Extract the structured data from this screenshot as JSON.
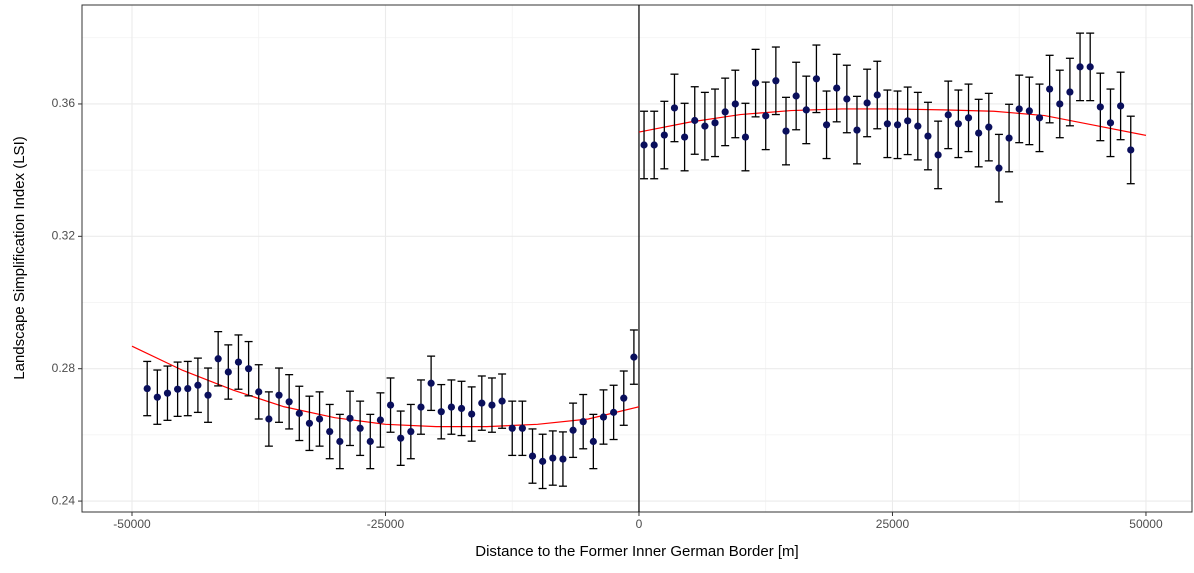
{
  "chart_data": {
    "type": "scatter",
    "x_label": "Distance to the Former Inner German Border [m]",
    "y_label": "Landscape Simplification Index (LSI)",
    "xlim": [
      -54930,
      54540
    ],
    "ylim": [
      0.2367,
      0.3899
    ],
    "xticks": [
      -50000,
      -25000,
      0,
      25000,
      50000
    ],
    "yticks": [
      0.24,
      0.28,
      0.32,
      0.36
    ],
    "x_minor_grid": [
      -37500,
      -12500,
      12500,
      37500
    ],
    "y_minor_grid": [
      0.26,
      0.3,
      0.34,
      0.38
    ],
    "grid": true,
    "vline": 0,
    "points": [
      {
        "color": "#0a0f5c",
        "error": 0.0082,
        "x": [
          -48500,
          -47500,
          -46500,
          -45500,
          -44500,
          -43500,
          -42500,
          -41500,
          -40500,
          -39500,
          -38500,
          -37500,
          -36500,
          -35500,
          -34500,
          -33500,
          -32500,
          -31500,
          -30500,
          -29500,
          -28500,
          -27500,
          -26500,
          -25500,
          -24500,
          -23500,
          -22500,
          -21500,
          -20500,
          -19500,
          -18500,
          -17500,
          -16500,
          -15500,
          -14500,
          -13500,
          -12500,
          -11500,
          -10500,
          -9500,
          -8500,
          -7500,
          -6500,
          -5500,
          -4500,
          -3500,
          -2500,
          -1500,
          -500
        ],
        "values": [
          0.274,
          0.2714,
          0.2726,
          0.2738,
          0.274,
          0.275,
          0.272,
          0.283,
          0.279,
          0.282,
          0.28,
          0.273,
          0.2648,
          0.272,
          0.27,
          0.2665,
          0.2635,
          0.2648,
          0.261,
          0.258,
          0.265,
          0.262,
          0.258,
          0.2645,
          0.269,
          0.259,
          0.261,
          0.2684,
          0.2756,
          0.267,
          0.2684,
          0.268,
          0.2663,
          0.2696,
          0.269,
          0.2702,
          0.262,
          0.262,
          0.2536,
          0.252,
          0.253,
          0.2527,
          0.2614,
          0.264,
          0.258,
          0.2654,
          0.2668,
          0.2711,
          0.2835
        ]
      },
      {
        "color": "#0a0f5c",
        "error": 0.0102,
        "x": [
          500,
          1500,
          2500,
          3500,
          4500,
          5500,
          6500,
          7500,
          8500,
          9500,
          10500,
          11500,
          12500,
          13500,
          14500,
          15500,
          16500,
          17500,
          18500,
          19500,
          20500,
          21500,
          22500,
          23500,
          24500,
          25500,
          26500,
          27500,
          28500,
          29500,
          30500,
          31500,
          32500,
          33500,
          34500,
          35500,
          36500,
          37500,
          38500,
          39500,
          40500,
          41500,
          42500,
          43500,
          44500,
          45500,
          46500,
          47500,
          48500
        ],
        "values": [
          0.3476,
          0.3476,
          0.3506,
          0.3588,
          0.35,
          0.355,
          0.3533,
          0.3543,
          0.3576,
          0.36,
          0.35,
          0.3663,
          0.3564,
          0.367,
          0.3518,
          0.3624,
          0.3582,
          0.3676,
          0.3537,
          0.3648,
          0.3615,
          0.3521,
          0.3603,
          0.3627,
          0.354,
          0.3537,
          0.3549,
          0.3533,
          0.3503,
          0.3446,
          0.3567,
          0.354,
          0.3558,
          0.3512,
          0.353,
          0.3406,
          0.3497,
          0.3585,
          0.3579,
          0.3558,
          0.3645,
          0.36,
          0.3636,
          0.3712,
          0.3712,
          0.3591,
          0.3543,
          0.3594,
          0.3461
        ]
      }
    ],
    "fits": [
      {
        "color": "#ff0000",
        "x": [
          -50000,
          -45000,
          -40000,
          -35000,
          -30000,
          -25000,
          -20000,
          -15000,
          -10000,
          -5000,
          0
        ],
        "values": [
          0.2868,
          0.2795,
          0.2735,
          0.2685,
          0.2652,
          0.2632,
          0.2625,
          0.2625,
          0.2632,
          0.2648,
          0.2685
        ]
      },
      {
        "color": "#ff0000",
        "x": [
          0,
          5000,
          10000,
          15000,
          20000,
          25000,
          30000,
          35000,
          40000,
          45000,
          50000
        ],
        "values": [
          0.3515,
          0.3545,
          0.3568,
          0.358,
          0.3585,
          0.3585,
          0.3582,
          0.3578,
          0.3565,
          0.3535,
          0.3505
        ]
      }
    ]
  }
}
